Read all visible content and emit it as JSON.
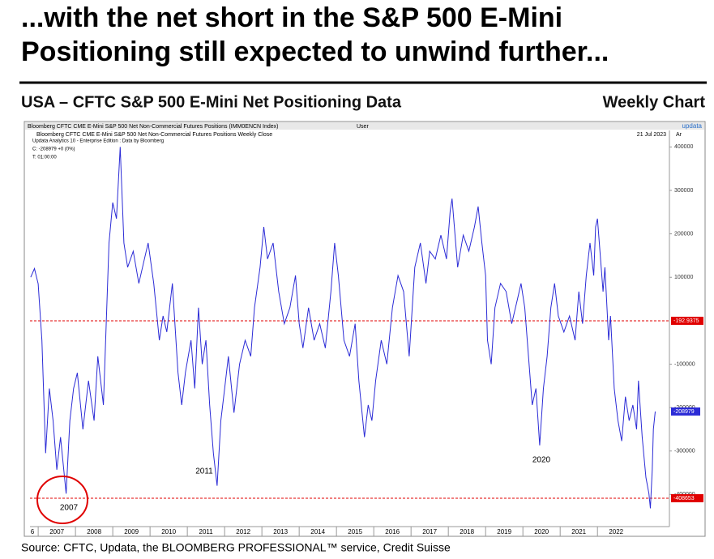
{
  "header": {
    "title_line1": "...with the net short in the S&P 500 E-Mini",
    "title_line2": "Positioning still expected to unwind further...",
    "subtitle": "USA – CFTC S&P 500 E-Mini Net Positioning Data",
    "subtitle_right": "Weekly Chart"
  },
  "footer": {
    "source": "Source: CFTC, Updata, the BLOOMBERG PROFESSIONAL™ service, Credit Suisse"
  },
  "chart_data": {
    "type": "line",
    "top_bar": {
      "left": "Bloomberg CFTC CME E-Mini S&P 500 Net Non-Commercial Futures Positions (IMM0ENCN Index)",
      "middle": "User",
      "logo": "updata"
    },
    "title": "Bloomberg CFTC CME E-Mini S&P 500 Net Non-Commercial Futures Positions Weekly Close",
    "date": "21 Jul 2023",
    "corner": "Ar",
    "info": [
      "Updata Analytics 10 - Enterprise Edition : Data by Bloomberg",
      "C: -208979  +0 (0%)",
      "T: 01:00:00"
    ],
    "annotations": [
      "2007",
      "2011",
      "2020"
    ],
    "series": [
      {
        "color": "#2b2bd6",
        "x": [
          2006.8,
          2006.9,
          2007.0,
          2007.1,
          2007.2,
          2007.3,
          2007.4,
          2007.5,
          2007.6,
          2007.75,
          2007.85,
          2007.95,
          2008.05,
          2008.2,
          2008.35,
          2008.5,
          2008.6,
          2008.75,
          2008.9,
          2009.0,
          2009.1,
          2009.2,
          2009.3,
          2009.4,
          2009.55,
          2009.7,
          2009.85,
          2009.95,
          2010.1,
          2010.25,
          2010.35,
          2010.45,
          2010.6,
          2010.75,
          2010.85,
          2010.95,
          2011.1,
          2011.2,
          2011.3,
          2011.4,
          2011.5,
          2011.6,
          2011.7,
          2011.8,
          2011.9,
          2012.0,
          2012.1,
          2012.25,
          2012.4,
          2012.55,
          2012.7,
          2012.8,
          2012.95,
          2013.05,
          2013.15,
          2013.3,
          2013.45,
          2013.6,
          2013.75,
          2013.9,
          2014.0,
          2014.1,
          2014.25,
          2014.4,
          2014.55,
          2014.7,
          2014.85,
          2014.95,
          2015.05,
          2015.2,
          2015.35,
          2015.5,
          2015.6,
          2015.75,
          2015.85,
          2015.95,
          2016.05,
          2016.2,
          2016.35,
          2016.5,
          2016.65,
          2016.8,
          2016.95,
          2017.1,
          2017.25,
          2017.4,
          2017.5,
          2017.65,
          2017.8,
          2017.95,
          2018.05,
          2018.1,
          2018.25,
          2018.4,
          2018.55,
          2018.7,
          2018.8,
          2018.9,
          2019.0,
          2019.05,
          2019.15,
          2019.25,
          2019.4,
          2019.55,
          2019.7,
          2019.85,
          2019.95,
          2020.05,
          2020.15,
          2020.25,
          2020.35,
          2020.45,
          2020.55,
          2020.65,
          2020.75,
          2020.85,
          2020.95,
          2021.1,
          2021.25,
          2021.4,
          2021.5,
          2021.6,
          2021.7,
          2021.8,
          2021.9,
          2021.95,
          2022.0,
          2022.05,
          2022.15,
          2022.2,
          2022.3,
          2022.35,
          2022.45,
          2022.55,
          2022.65,
          2022.75,
          2022.85,
          2022.95,
          2023.05,
          2023.1,
          2023.2,
          2023.3,
          2023.38,
          2023.42,
          2023.47,
          2023.5,
          2023.55
        ],
        "values": [
          100000,
          120000,
          85000,
          -45000,
          -305000,
          -156000,
          -230000,
          -343000,
          -268000,
          -398000,
          -230000,
          -156000,
          -120000,
          -250000,
          -138000,
          -230000,
          -82000,
          -194000,
          179000,
          272000,
          235000,
          400000,
          179000,
          123000,
          160000,
          86000,
          142000,
          179000,
          86000,
          -45000,
          11000,
          -26000,
          86000,
          -119000,
          -194000,
          -119000,
          -45000,
          -156000,
          30000,
          -100000,
          -45000,
          -194000,
          -305000,
          -380000,
          -230000,
          -156000,
          -82000,
          -212000,
          -100000,
          -45000,
          -82000,
          30000,
          123000,
          216000,
          142000,
          179000,
          67000,
          -7000,
          30000,
          104000,
          -7000,
          -63000,
          30000,
          -45000,
          -7000,
          -63000,
          67000,
          179000,
          104000,
          -45000,
          -82000,
          -7000,
          -138000,
          -268000,
          -194000,
          -230000,
          -138000,
          -45000,
          -100000,
          30000,
          104000,
          67000,
          -82000,
          123000,
          179000,
          86000,
          160000,
          142000,
          197000,
          142000,
          253000,
          281000,
          123000,
          197000,
          160000,
          216000,
          263000,
          179000,
          104000,
          -45000,
          -100000,
          30000,
          86000,
          67000,
          -7000,
          48000,
          86000,
          30000,
          -82000,
          -194000,
          -156000,
          -287000,
          -156000,
          -82000,
          30000,
          86000,
          11000,
          -26000,
          11000,
          -45000,
          67000,
          -7000,
          104000,
          179000,
          104000,
          216000,
          235000,
          179000,
          67000,
          123000,
          -45000,
          11000,
          -156000,
          -230000,
          -277000,
          -175000,
          -230000,
          -194000,
          -250000,
          -138000,
          -268000,
          -361000,
          -398000,
          -432000,
          -343000,
          -250000,
          -208979
        ]
      }
    ],
    "reference_lines": [
      -192.9375,
      -408653
    ],
    "reference_color": "#e00000",
    "last_value": -208979,
    "xlim": [
      2006.78,
      2023.93
    ],
    "xticks": [
      {
        "value": 2006,
        "label": "6"
      },
      2007,
      2008,
      2009,
      2010,
      2011,
      2012,
      2013,
      2014,
      2015,
      2016,
      2017,
      2018,
      2019,
      2020,
      2021,
      2022
    ],
    "ylim": [
      -474000,
      425000
    ],
    "yticks": [
      400000,
      300000,
      200000,
      100000,
      -100000,
      -200000,
      -300000,
      -400000
    ]
  }
}
